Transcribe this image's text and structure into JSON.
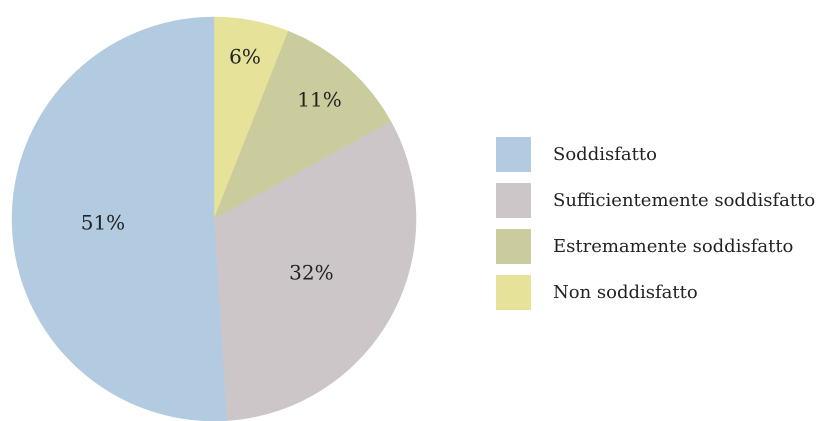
{
  "chart_data": {
    "type": "pie",
    "slices": [
      {
        "label": "Non soddisfatto",
        "value": 6,
        "display": "6%",
        "color": "#e6e299"
      },
      {
        "label": "Estremamente soddisfatto",
        "value": 11,
        "display": "11%",
        "color": "#cbcc9d"
      },
      {
        "label": "Sufficientemente soddisfatto",
        "value": 32,
        "display": "32%",
        "color": "#ccc6c8"
      },
      {
        "label": "Soddisfatto",
        "value": 51,
        "display": "51%",
        "color": "#b3cbe0"
      }
    ],
    "legend": {
      "placement": "right",
      "items": [
        {
          "label": "Soddisfatto",
          "color": "#b3cbe0"
        },
        {
          "label": "Sufficientemente soddisfatto",
          "color": "#ccc6c8"
        },
        {
          "label": "Estremamente soddisfatto",
          "color": "#cbcc9d"
        },
        {
          "label": "Non soddisfatto",
          "color": "#e6e299"
        }
      ]
    },
    "start": "12 o'clock",
    "direction": "clockwise"
  }
}
